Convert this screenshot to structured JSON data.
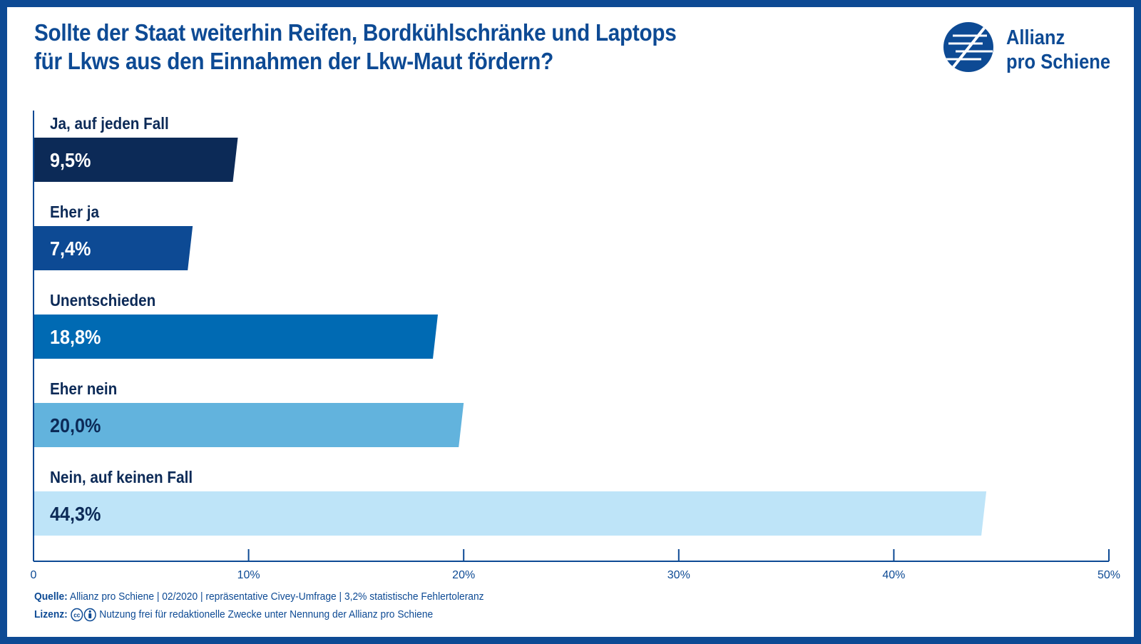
{
  "chart_data": {
    "type": "bar",
    "orientation": "horizontal",
    "title": "Sollte der Staat weiterhin Reifen, Bordkühlschränke und Laptops für Lkws aus den Einnahmen der Lkw-Maut fördern?",
    "title_lines": [
      "Sollte der Staat weiterhin Reifen, Bordkühlschränke und Laptops",
      "für Lkws aus den Einnahmen der Lkw-Maut fördern?"
    ],
    "categories": [
      "Ja, auf jeden Fall",
      "Eher ja",
      "Unentschieden",
      "Eher nein",
      "Nein, auf keinen Fall"
    ],
    "values": [
      9.5,
      7.4,
      18.8,
      20.0,
      44.3
    ],
    "value_labels": [
      "9,5%",
      "7,4%",
      "18,8%",
      "20,0%",
      "44,3%"
    ],
    "bar_colors": [
      "#0c2a57",
      "#0d4a94",
      "#006ab3",
      "#62b3dd",
      "#bee4f8"
    ],
    "value_label_colors": [
      "#ffffff",
      "#ffffff",
      "#ffffff",
      "#0c2a57",
      "#0c2a57"
    ],
    "xlim": [
      0,
      50
    ],
    "ticks": [
      0,
      10,
      20,
      30,
      40,
      50
    ],
    "tick_labels": [
      "0",
      "10%",
      "20%",
      "30%",
      "40%",
      "50%"
    ],
    "xlabel": "",
    "ylabel": "",
    "grid": false,
    "legend": "none"
  },
  "logo": {
    "line1": "Allianz",
    "line2": "pro Schiene",
    "icon": "allianz-pro-schiene-logo-icon"
  },
  "footer": {
    "source_label": "Quelle:",
    "source_text": "Allianz pro Schiene | 02/2020 | repräsentative Civey-Umfrage | 3,2% statistische Fehlertoleranz",
    "license_label": "Lizenz:",
    "license_icon": "creative-commons-by-icon",
    "license_text": "Nutzung frei für redaktionelle Zwecke unter Nennung der Allianz pro Schiene"
  },
  "colors": {
    "brand": "#0d4a94",
    "dark": "#0c2a57"
  }
}
